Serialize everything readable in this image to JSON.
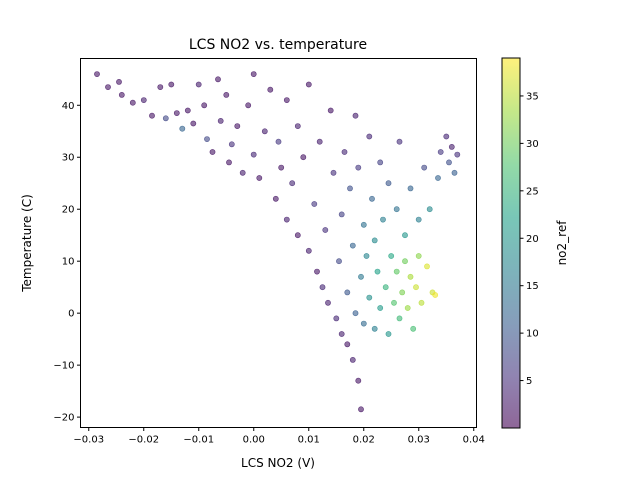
{
  "chart_data": {
    "type": "scatter",
    "title": "LCS NO2 vs. temperature",
    "xlabel": "LCS NO2 (V)",
    "ylabel": "Temperature (C)",
    "xlim": [
      -0.0315,
      0.0405
    ],
    "ylim": [
      -22,
      49
    ],
    "xticks": [
      -0.03,
      -0.02,
      -0.01,
      0.0,
      0.01,
      0.02,
      0.03,
      0.04
    ],
    "xtick_labels": [
      "−0.03",
      "−0.02",
      "−0.01",
      "0.00",
      "0.01",
      "0.02",
      "0.03",
      "0.04"
    ],
    "yticks": [
      -20,
      -10,
      0,
      10,
      20,
      30,
      40
    ],
    "ytick_labels": [
      "−20",
      "−10",
      "0",
      "10",
      "20",
      "30",
      "40"
    ],
    "grid": false,
    "colorbar": {
      "label": "no2_ref",
      "colormap": "viridis",
      "alpha": 0.6,
      "range": [
        0,
        39
      ],
      "ticks": [
        5,
        10,
        15,
        20,
        25,
        30,
        35
      ],
      "tick_labels": [
        "5",
        "10",
        "15",
        "20",
        "25",
        "30",
        "35"
      ]
    },
    "series": [
      {
        "points": [
          [
            -0.0285,
            46,
            2
          ],
          [
            -0.0265,
            43.5,
            2
          ],
          [
            -0.0245,
            44.5,
            2
          ],
          [
            -0.024,
            42,
            2
          ],
          [
            -0.022,
            40.5,
            2
          ],
          [
            -0.02,
            41,
            3
          ],
          [
            -0.0185,
            38,
            2
          ],
          [
            -0.017,
            43.5,
            2
          ],
          [
            -0.016,
            37.5,
            8
          ],
          [
            -0.015,
            44,
            2
          ],
          [
            -0.014,
            38.5,
            2
          ],
          [
            -0.013,
            35.5,
            12
          ],
          [
            -0.012,
            39,
            2
          ],
          [
            -0.011,
            36.5,
            2
          ],
          [
            -0.01,
            44,
            3
          ],
          [
            -0.009,
            40,
            2
          ],
          [
            -0.0085,
            33.5,
            8
          ],
          [
            -0.0075,
            31,
            2
          ],
          [
            -0.0065,
            45,
            2
          ],
          [
            -0.006,
            37,
            3
          ],
          [
            -0.005,
            42,
            2
          ],
          [
            -0.0045,
            29,
            2
          ],
          [
            -0.004,
            32.5,
            5
          ],
          [
            -0.003,
            36,
            2
          ],
          [
            -0.002,
            27,
            3
          ],
          [
            -0.001,
            40,
            2
          ],
          [
            0.0,
            46,
            2
          ],
          [
            0.0,
            30.5,
            4
          ],
          [
            0.001,
            26,
            2
          ],
          [
            0.002,
            35,
            3
          ],
          [
            0.003,
            43,
            2
          ],
          [
            0.004,
            22,
            2
          ],
          [
            0.0045,
            33,
            6
          ],
          [
            0.005,
            28,
            2
          ],
          [
            0.006,
            18,
            3
          ],
          [
            0.006,
            41,
            2
          ],
          [
            0.007,
            25,
            4
          ],
          [
            0.008,
            15,
            2
          ],
          [
            0.008,
            36,
            3
          ],
          [
            0.009,
            30,
            2
          ],
          [
            0.01,
            12,
            3
          ],
          [
            0.01,
            44,
            2
          ],
          [
            0.011,
            21,
            6
          ],
          [
            0.0115,
            8,
            2
          ],
          [
            0.012,
            33,
            3
          ],
          [
            0.0125,
            5,
            4
          ],
          [
            0.013,
            16,
            5
          ],
          [
            0.0135,
            2,
            3
          ],
          [
            0.014,
            39,
            2
          ],
          [
            0.0145,
            27,
            5
          ],
          [
            0.015,
            -1,
            4
          ],
          [
            0.0155,
            10,
            8
          ],
          [
            0.016,
            19,
            7
          ],
          [
            0.016,
            -4,
            3
          ],
          [
            0.0165,
            31,
            4
          ],
          [
            0.017,
            4,
            10
          ],
          [
            0.017,
            -6,
            2
          ],
          [
            0.0175,
            24,
            9
          ],
          [
            0.018,
            13,
            12
          ],
          [
            0.018,
            -9,
            3
          ],
          [
            0.0185,
            0,
            11
          ],
          [
            0.0185,
            38,
            3
          ],
          [
            0.019,
            -13,
            2
          ],
          [
            0.019,
            28,
            6
          ],
          [
            0.0195,
            7,
            15
          ],
          [
            0.0195,
            -18.5,
            2
          ],
          [
            0.02,
            17,
            14
          ],
          [
            0.02,
            -2,
            13
          ],
          [
            0.0205,
            11,
            17
          ],
          [
            0.021,
            34,
            4
          ],
          [
            0.021,
            3,
            19
          ],
          [
            0.0215,
            22,
            12
          ],
          [
            0.022,
            14,
            18
          ],
          [
            0.022,
            -3,
            16
          ],
          [
            0.0225,
            8,
            22
          ],
          [
            0.023,
            29,
            7
          ],
          [
            0.023,
            1,
            21
          ],
          [
            0.0235,
            18,
            16
          ],
          [
            0.024,
            5,
            25
          ],
          [
            0.0245,
            25,
            10
          ],
          [
            0.0245,
            -4,
            20
          ],
          [
            0.025,
            11,
            23
          ],
          [
            0.0255,
            2,
            28
          ],
          [
            0.026,
            20,
            14
          ],
          [
            0.026,
            8,
            29
          ],
          [
            0.0265,
            33,
            5
          ],
          [
            0.0265,
            -1,
            26
          ],
          [
            0.027,
            4,
            31
          ],
          [
            0.0275,
            15,
            20
          ],
          [
            0.0275,
            10,
            30
          ],
          [
            0.028,
            1,
            33
          ],
          [
            0.0285,
            24,
            12
          ],
          [
            0.0285,
            7,
            34
          ],
          [
            0.029,
            -3,
            27
          ],
          [
            0.0295,
            5,
            36
          ],
          [
            0.03,
            18,
            16
          ],
          [
            0.03,
            11,
            32
          ],
          [
            0.0305,
            2,
            35
          ],
          [
            0.031,
            28,
            8
          ],
          [
            0.0315,
            9,
            37
          ],
          [
            0.032,
            20,
            18
          ],
          [
            0.0325,
            4,
            36
          ],
          [
            0.033,
            3.5,
            38
          ],
          [
            0.0335,
            26,
            12
          ],
          [
            0.034,
            31,
            6
          ],
          [
            0.035,
            34,
            4
          ],
          [
            0.0355,
            29,
            9
          ],
          [
            0.036,
            32,
            3
          ],
          [
            0.0365,
            27,
            11
          ],
          [
            0.037,
            30.5,
            5
          ]
        ]
      }
    ]
  }
}
